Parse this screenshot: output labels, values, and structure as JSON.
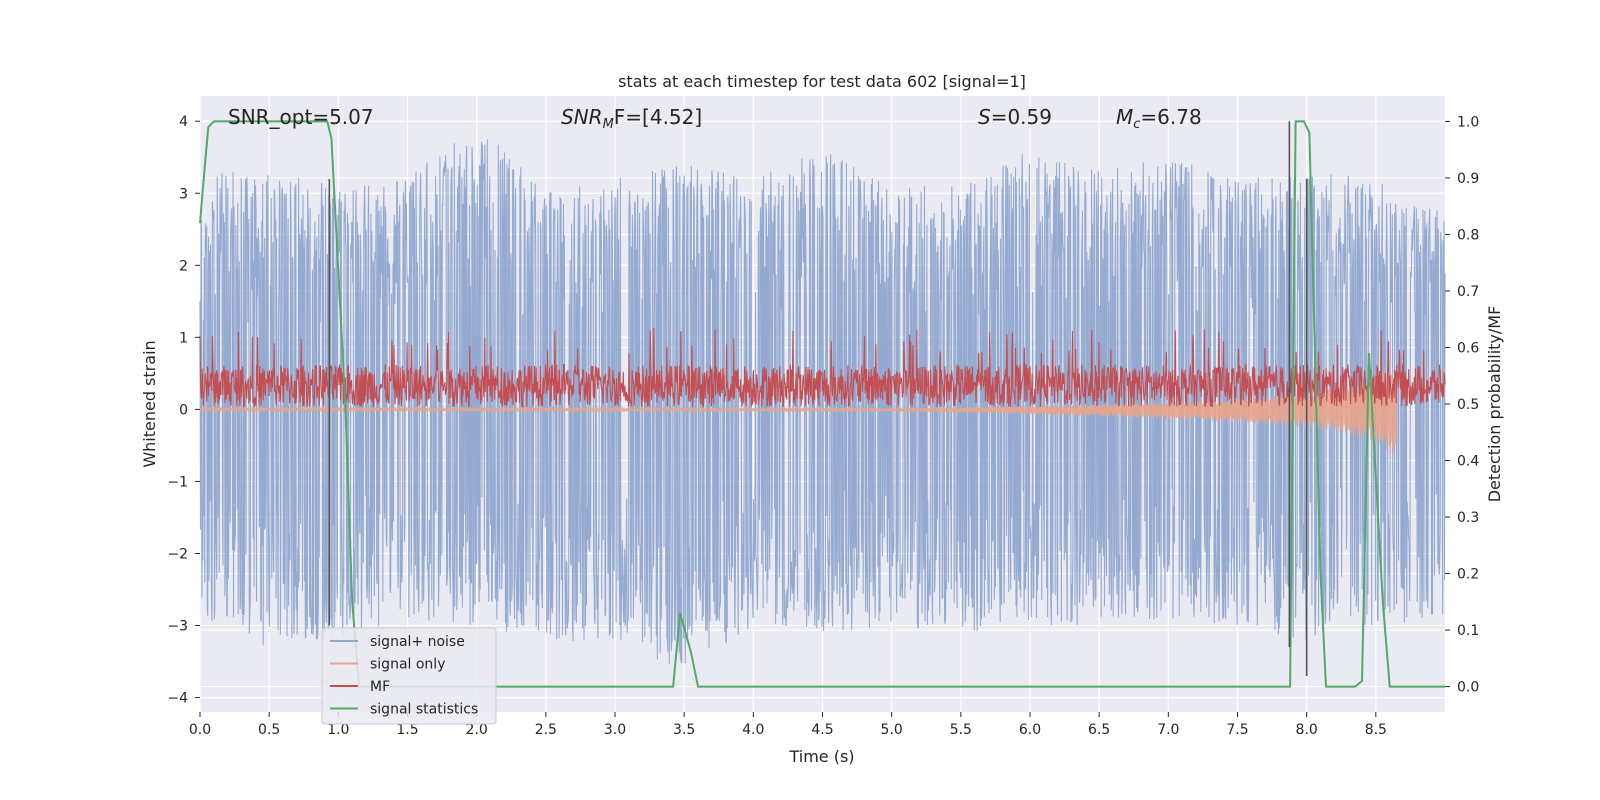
{
  "chart_data": {
    "type": "line",
    "title": "stats at each timestep for test data 602 [signal=1]",
    "xlabel": "Time (s)",
    "ylabel": "Whitened strain",
    "y2label": "Detection probability/MF",
    "xlim": [
      0.0,
      9.0
    ],
    "ylim": [
      -4.2,
      4.35
    ],
    "y2lim": [
      -0.045,
      1.045
    ],
    "x_ticks": [
      "0.0",
      "0.5",
      "1.0",
      "1.5",
      "2.0",
      "2.5",
      "3.0",
      "3.5",
      "4.0",
      "4.5",
      "5.0",
      "5.5",
      "6.0",
      "6.5",
      "7.0",
      "7.5",
      "8.0",
      "8.5"
    ],
    "y_ticks": [
      "4",
      "3",
      "2",
      "1",
      "0",
      "−1",
      "−2",
      "−3",
      "−4"
    ],
    "y2_ticks": [
      "1.0",
      "0.9",
      "0.8",
      "0.7",
      "0.6",
      "0.5",
      "0.4",
      "0.3",
      "0.2",
      "0.1",
      "0.0"
    ],
    "annotations": {
      "snr_opt": "SNR_opt=5.07",
      "snr_mf_base": "SNR",
      "snr_mf_sub": "M",
      "snr_mf_rest": "F=[4.52]",
      "s_base": "S",
      "s_rest": "=0.59",
      "mc_base": "M",
      "mc_sub": "c",
      "mc_rest": "=6.78"
    },
    "legend_position": "lower-left",
    "series": [
      {
        "name": "signal+ noise",
        "color": "#8fa6cf",
        "axis": "left",
        "envelope": {
          "t": [
            0.0,
            0.5,
            1.0,
            1.5,
            2.0,
            2.5,
            3.0,
            3.5,
            4.0,
            4.5,
            5.0,
            5.5,
            6.0,
            6.5,
            7.0,
            7.5,
            8.0,
            8.5,
            9.0
          ],
          "upper": [
            3.3,
            3.3,
            3.1,
            3.2,
            4.0,
            3.0,
            3.2,
            3.4,
            3.2,
            3.6,
            3.1,
            3.1,
            3.6,
            3.3,
            3.5,
            3.2,
            3.3,
            3.2,
            2.7
          ],
          "lower": [
            -3.0,
            -3.3,
            -3.2,
            -2.9,
            -3.0,
            -3.2,
            -3.3,
            -3.6,
            -3.0,
            -3.1,
            -3.0,
            -3.1,
            -3.0,
            -3.0,
            -2.9,
            -3.0,
            -3.2,
            -3.0,
            -2.9
          ]
        }
      },
      {
        "name": "signal only",
        "color": "#e8a48a",
        "axis": "left",
        "envelope": {
          "t": [
            0.0,
            5.0,
            5.5,
            6.0,
            6.5,
            7.0,
            7.5,
            8.0,
            8.3,
            8.5,
            8.65
          ],
          "upper": [
            0.02,
            0.02,
            0.03,
            0.05,
            0.07,
            0.1,
            0.15,
            0.25,
            0.35,
            0.5,
            0.6
          ],
          "lower": [
            -0.02,
            -0.03,
            -0.05,
            -0.07,
            -0.1,
            -0.14,
            -0.18,
            -0.25,
            -0.35,
            -0.45,
            -0.7
          ]
        }
      },
      {
        "name": "MF",
        "color": "#c44e52",
        "axis": "right",
        "envelope": {
          "t": [
            0.0,
            9.0
          ],
          "upper": [
            0.57,
            0.57
          ],
          "lower": [
            0.495,
            0.495
          ]
        }
      },
      {
        "name": "signal statistics",
        "color": "#55a868",
        "axis": "right",
        "x": [
          0.0,
          0.02,
          0.06,
          0.1,
          0.2,
          0.5,
          0.8,
          0.92,
          0.95,
          1.05,
          1.1,
          1.15,
          3.3,
          3.42,
          3.47,
          3.55,
          3.6,
          3.62,
          7.0,
          7.8,
          7.88,
          7.92,
          7.98,
          8.02,
          8.1,
          8.14,
          8.3,
          8.35,
          8.4,
          8.45,
          8.55,
          8.6,
          8.9,
          9.0
        ],
        "y": [
          0.82,
          0.88,
          0.99,
          1.0,
          1.0,
          1.0,
          1.0,
          1.0,
          0.97,
          0.5,
          0.15,
          0.0,
          0.0,
          0.0,
          0.13,
          0.06,
          0.0,
          0.0,
          0.0,
          0.0,
          0.0,
          1.0,
          1.0,
          0.98,
          0.2,
          0.0,
          0.0,
          0.0,
          0.01,
          0.59,
          0.15,
          0.0,
          0.0,
          0.0
        ]
      }
    ],
    "vertical_markers": [
      {
        "x": 0.935,
        "y_from": -3.0,
        "y_to": 3.2
      },
      {
        "x": 7.875,
        "y_from": -3.3,
        "y_to": 4.0
      },
      {
        "x": 8.0,
        "y_from": -3.7,
        "y_to": 3.2
      }
    ],
    "grid": true
  }
}
